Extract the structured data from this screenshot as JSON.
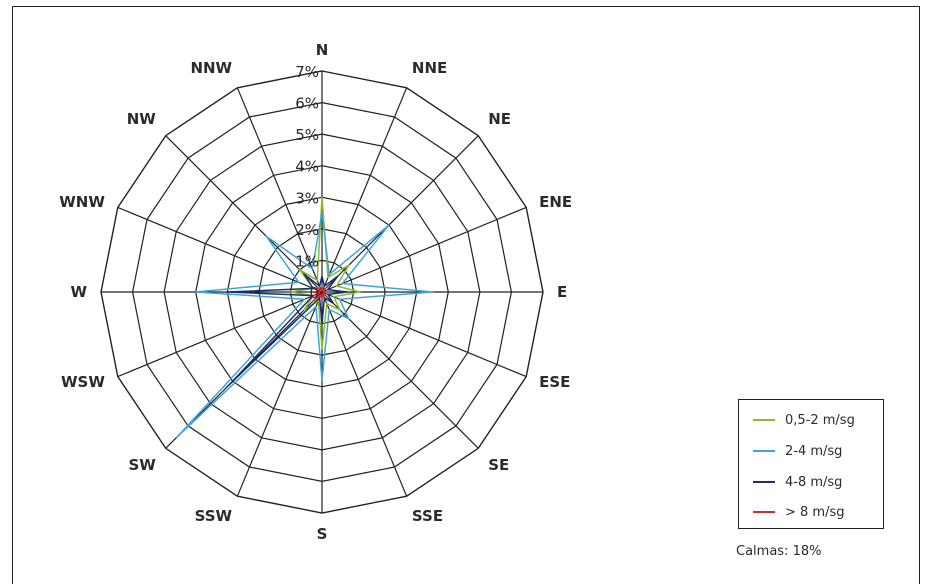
{
  "chart_data": {
    "type": "radar",
    "title": "",
    "directions": [
      "N",
      "NNE",
      "NE",
      "ENE",
      "E",
      "ESE",
      "SE",
      "SSE",
      "S",
      "SSW",
      "SW",
      "WSW",
      "W",
      "WNW",
      "NW",
      "NNW"
    ],
    "radial_ticks": [
      "0",
      "1%",
      "2%",
      "3%",
      "4%",
      "5%",
      "6%",
      "7%"
    ],
    "rmax": 7,
    "unit": "%",
    "series": [
      {
        "name": "0,5-2 m/sg",
        "color": "#8ab832",
        "values": [
          3.0,
          0.5,
          1.2,
          0.5,
          1.2,
          0.4,
          0.8,
          0.4,
          1.8,
          0.3,
          0.8,
          0.3,
          1.0,
          0.3,
          1.0,
          0.4
        ]
      },
      {
        "name": "2-4 m/sg",
        "color": "#3fa5d8",
        "values": [
          2.5,
          0.6,
          3.0,
          0.7,
          3.5,
          0.6,
          1.2,
          0.6,
          2.8,
          0.5,
          6.5,
          0.6,
          4.0,
          0.8,
          2.5,
          0.8
        ]
      },
      {
        "name": "4-8 m/sg",
        "color": "#1e2f6b",
        "values": [
          0.5,
          0.2,
          0.7,
          0.2,
          0.8,
          0.2,
          0.5,
          0.2,
          1.0,
          0.2,
          4.2,
          0.3,
          3.0,
          0.3,
          0.8,
          0.2
        ]
      },
      {
        "name": "> 8 m/sg",
        "color": "#e0262b",
        "values": [
          0.1,
          0.05,
          0.15,
          0.05,
          0.1,
          0.05,
          0.1,
          0.05,
          0.2,
          0.1,
          0.4,
          0.1,
          0.3,
          0.05,
          0.2,
          0.05
        ]
      }
    ],
    "legend_position": "bottom-right"
  },
  "calmas": "Calmas: 18%"
}
